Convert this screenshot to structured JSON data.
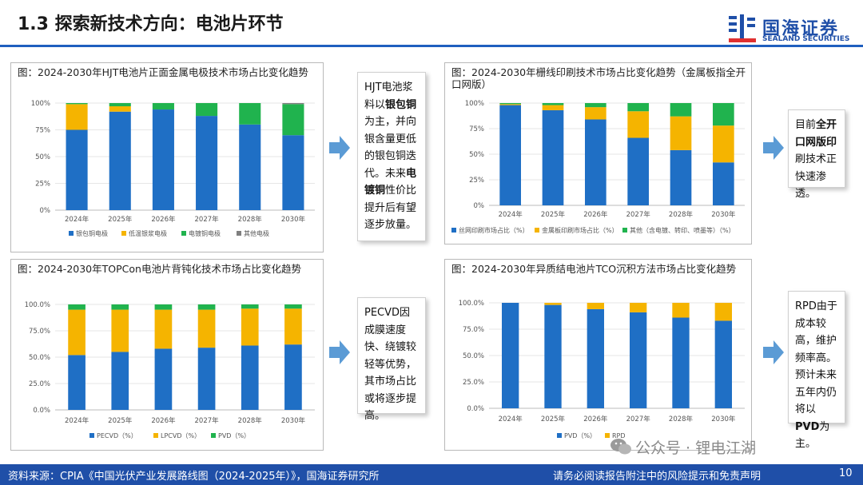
{
  "page": {
    "title": "1.3 探索新技术方向：电池片环节"
  },
  "logo": {
    "cn": "国海证券",
    "en": "SEALAND SECURITIES"
  },
  "colors": {
    "blue": "#1f6fc5",
    "yellow": "#f5b400",
    "green": "#20b34e",
    "gray": "#7f7f7f",
    "brand": "#1f4fa8"
  },
  "notes": [
    {
      "parts": [
        {
          "t": "HJT电池浆料以"
        },
        {
          "t": "银包铜",
          "b": true
        },
        {
          "t": "为主，并向银含量更低的银包铜迭代。未来"
        },
        {
          "t": "电镀铜",
          "b": true
        },
        {
          "t": "性价比提升后有望逐步放量。"
        }
      ]
    },
    {
      "parts": [
        {
          "t": "目前"
        },
        {
          "t": "全开口网版印",
          "b": true
        },
        {
          "t": "刷技术正快速渗透。"
        }
      ]
    },
    {
      "parts": [
        {
          "t": "PECVD因成膜速度快、绕镀较轻等优势，其市场占比或将逐步提高。"
        }
      ]
    },
    {
      "parts": [
        {
          "t": "RPD由于成本较高，维护频率高。预计未来五年内仍将以"
        },
        {
          "t": "PVD",
          "b": true
        },
        {
          "t": "为主。"
        }
      ]
    }
  ],
  "chart_data": [
    {
      "type": "bar",
      "stacked": true,
      "title": "图：2024-2030年HJT电池片正面金属电极技术市场占比变化趋势",
      "categories": [
        "2024年",
        "2025年",
        "2026年",
        "2027年",
        "2028年",
        "2030年"
      ],
      "yticks": [
        "0%",
        "25%",
        "50%",
        "75%",
        "100%"
      ],
      "ylim": [
        0,
        100
      ],
      "series": [
        {
          "name": "银包铜电极",
          "color": "#1f6fc5",
          "values": [
            75,
            92,
            94,
            88,
            80,
            70
          ]
        },
        {
          "name": "低温银浆电极",
          "color": "#f5b400",
          "values": [
            24,
            5,
            0,
            0,
            0,
            0
          ]
        },
        {
          "name": "电镀铜电极",
          "color": "#20b34e",
          "values": [
            1,
            3,
            6,
            12,
            20,
            29
          ]
        },
        {
          "name": "其他电极",
          "color": "#7f7f7f",
          "values": [
            0,
            0,
            0,
            0,
            0,
            1
          ]
        }
      ],
      "legend": "bottom"
    },
    {
      "type": "bar",
      "stacked": true,
      "title": "图：2024-2030年栅线印刷技术市场占比变化趋势（金属板指全开口网版）",
      "categories": [
        "2024年",
        "2025年",
        "2026年",
        "2027年",
        "2028年",
        "2030年"
      ],
      "yticks": [
        "0%",
        "25%",
        "50%",
        "75%",
        "100%"
      ],
      "ylim": [
        0,
        100
      ],
      "series": [
        {
          "name": "丝网印刷市场占比（%）",
          "color": "#1f6fc5",
          "values": [
            98,
            93,
            84,
            66,
            54,
            42
          ]
        },
        {
          "name": "金属板印刷市场占比（%）",
          "color": "#f5b400",
          "values": [
            1,
            5,
            12,
            26,
            33,
            36
          ]
        },
        {
          "name": "其他（含电镀、转印、喷墨等）（%）",
          "color": "#20b34e",
          "values": [
            1,
            2,
            4,
            8,
            13,
            22
          ]
        }
      ],
      "legend": "bottom"
    },
    {
      "type": "bar",
      "stacked": true,
      "title": "图：2024-2030年TOPCon电池片背钝化技术市场占比变化趋势",
      "categories": [
        "2024年",
        "2025年",
        "2026年",
        "2027年",
        "2028年",
        "2030年"
      ],
      "yticks": [
        "0.0%",
        "25.0%",
        "50.0%",
        "75.0%",
        "100.0%"
      ],
      "ylim": [
        0,
        100
      ],
      "series": [
        {
          "name": "PECVD（%）",
          "color": "#1f6fc5",
          "values": [
            52,
            55,
            58,
            59,
            61,
            62
          ]
        },
        {
          "name": "LPCVD（%）",
          "color": "#f5b400",
          "values": [
            43,
            40,
            37,
            36,
            35,
            34
          ]
        },
        {
          "name": "PVD（%）",
          "color": "#20b34e",
          "values": [
            5,
            5,
            5,
            5,
            4,
            4
          ]
        }
      ],
      "legend": "bottom"
    },
    {
      "type": "bar",
      "stacked": true,
      "title": "图：2024-2030年异质结电池片TCO沉积方法市场占比变化趋势",
      "categories": [
        "2024年",
        "2025年",
        "2026年",
        "2027年",
        "2028年",
        "2030年"
      ],
      "yticks": [
        "0.0%",
        "25.0%",
        "50.0%",
        "75.0%",
        "100.0%"
      ],
      "ylim": [
        0,
        100
      ],
      "series": [
        {
          "name": "PVD（%）",
          "color": "#1f6fc5",
          "values": [
            100,
            98,
            94,
            91,
            86,
            83
          ]
        },
        {
          "name": "RPD",
          "color": "#f5b400",
          "values": [
            0,
            2,
            6,
            9,
            14,
            17
          ]
        }
      ],
      "legend": "bottom"
    }
  ],
  "footer": {
    "source": "资料来源：CPIA《中国光伏产业发展路线图（2024-2025年）》，国海证券研究所",
    "disclaimer": "请务必阅读报告附注中的风险提示和免责声明",
    "page": "10"
  },
  "watermark": {
    "text": "公众号 · 锂电江湖"
  }
}
